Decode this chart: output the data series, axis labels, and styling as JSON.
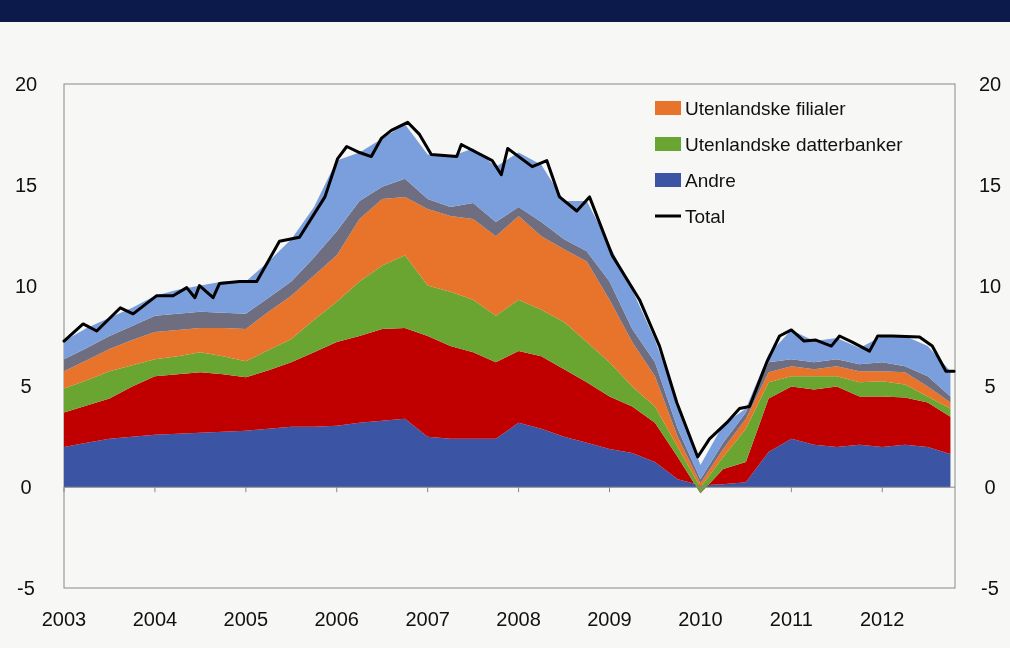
{
  "chart_data": {
    "type": "area",
    "stacked": true,
    "legend": "top right",
    "x": [
      2003,
      2003.25,
      2003.5,
      2003.75,
      2004,
      2004.25,
      2004.5,
      2004.75,
      2005,
      2005.25,
      2005.5,
      2005.75,
      2006,
      2006.25,
      2006.5,
      2006.75,
      2007,
      2007.25,
      2007.5,
      2007.75,
      2008,
      2008.25,
      2008.5,
      2008.75,
      2009,
      2009.25,
      2009.5,
      2009.75,
      2010,
      2010.25,
      2010.5,
      2010.75,
      2011,
      2011.25,
      2011.5,
      2011.75,
      2012,
      2012.25,
      2012.5,
      2012.75
    ],
    "xlim": [
      2003,
      2012.8
    ],
    "xticks": [
      2003,
      2004,
      2005,
      2006,
      2007,
      2008,
      2009,
      2010,
      2011,
      2012
    ],
    "ylim": [
      -5,
      20
    ],
    "yticks": [
      -5,
      0,
      5,
      10,
      15,
      20
    ],
    "y2lim": [
      -5,
      20
    ],
    "y2ticks": [
      -5,
      0,
      5,
      10,
      15,
      20
    ],
    "series": [
      {
        "name": "Andre",
        "color": "#3b54a4",
        "values": [
          2.0,
          2.2,
          2.4,
          2.5,
          2.6,
          2.65,
          2.7,
          2.75,
          2.8,
          2.9,
          3.0,
          3.0,
          3.05,
          3.2,
          3.3,
          3.4,
          2.5,
          2.4,
          2.4,
          2.4,
          3.2,
          2.9,
          2.5,
          2.2,
          1.9,
          1.7,
          1.25,
          0.4,
          0.1,
          0.15,
          0.25,
          1.75,
          2.4,
          2.1,
          2.0,
          2.1,
          2.0,
          2.1,
          2.0,
          1.65
        ]
      },
      {
        "color": "#c00000",
        "values": [
          1.7,
          1.85,
          2.0,
          2.5,
          2.9,
          2.95,
          3.0,
          2.85,
          2.65,
          2.9,
          3.2,
          3.7,
          4.15,
          4.3,
          4.55,
          4.5,
          5.0,
          4.6,
          4.3,
          3.8,
          3.55,
          3.6,
          3.35,
          3.0,
          2.6,
          2.3,
          1.95,
          1.1,
          -0.4,
          0.75,
          1.0,
          2.65,
          2.6,
          2.75,
          3.0,
          2.4,
          2.5,
          2.35,
          2.2,
          1.85
        ]
      },
      {
        "name": "Utenlandske datterbanker",
        "color": "#6aa532",
        "values": [
          1.2,
          1.25,
          1.35,
          1.05,
          0.85,
          0.9,
          1.0,
          0.9,
          0.8,
          1.0,
          1.15,
          1.6,
          2.0,
          2.7,
          3.15,
          3.6,
          2.5,
          2.7,
          2.6,
          2.3,
          2.55,
          2.3,
          2.35,
          2.0,
          1.7,
          1.0,
          0.8,
          0.5,
          0.3,
          0.6,
          1.65,
          0.8,
          0.5,
          0.65,
          0.5,
          0.7,
          0.75,
          0.65,
          0.3,
          0.4
        ]
      },
      {
        "name": "Utenlandske filialer",
        "color": "#e8732a",
        "values": [
          0.85,
          1.0,
          1.1,
          1.25,
          1.35,
          1.3,
          1.2,
          1.4,
          1.6,
          1.9,
          2.15,
          2.2,
          2.3,
          3.1,
          3.3,
          2.9,
          3.8,
          3.75,
          4.0,
          3.95,
          4.15,
          3.65,
          3.6,
          4.0,
          3.1,
          2.2,
          1.5,
          0.5,
          0.2,
          0.4,
          0.5,
          0.5,
          0.5,
          0.35,
          0.5,
          0.55,
          0.5,
          0.6,
          0.5,
          0.3
        ]
      },
      {
        "color": "#6e6e80",
        "values": [
          0.6,
          0.6,
          0.65,
          0.7,
          0.8,
          0.8,
          0.8,
          0.75,
          0.75,
          0.7,
          0.7,
          0.9,
          1.2,
          0.9,
          0.6,
          0.9,
          0.5,
          0.45,
          0.8,
          0.7,
          0.45,
          0.7,
          0.5,
          0.5,
          0.9,
          0.65,
          0.7,
          0.4,
          0.2,
          0.3,
          0.3,
          0.5,
          0.35,
          0.35,
          0.35,
          0.35,
          0.45,
          0.3,
          0.5,
          0.3
        ]
      },
      {
        "color": "#7b9fdc",
        "values": [
          0.9,
          1.0,
          0.9,
          0.9,
          1.0,
          1.2,
          1.3,
          1.55,
          1.6,
          1.8,
          2.1,
          2.5,
          3.5,
          2.4,
          2.4,
          2.7,
          2.2,
          2.5,
          2.7,
          2.75,
          2.7,
          2.85,
          1.9,
          2.5,
          1.8,
          1.95,
          1.1,
          1.3,
          0.7,
          0.9,
          0.2,
          0.4,
          1.45,
          1.05,
          1.05,
          0.8,
          1.3,
          1.5,
          1.5,
          1.25
        ]
      },
      {
        "name": "Total",
        "type": "line",
        "color": "#000000",
        "x": [
          2003,
          2003.21,
          2003.36,
          2003.62,
          2003.76,
          2004.02,
          2004.2,
          2004.35,
          2004.44,
          2004.49,
          2004.64,
          2004.71,
          2004.93,
          2005.12,
          2005.37,
          2005.59,
          2005.87,
          2006.01,
          2006.11,
          2006.25,
          2006.38,
          2006.49,
          2006.6,
          2006.78,
          2006.91,
          2007.04,
          2007.32,
          2007.37,
          2007.71,
          2007.81,
          2007.88,
          2008.15,
          2008.31,
          2008.45,
          2008.64,
          2008.78,
          2009.03,
          2009.33,
          2009.55,
          2009.74,
          2009.97,
          2010.1,
          2010.29,
          2010.43,
          2010.54,
          2010.73,
          2010.87,
          2011.0,
          2011.14,
          2011.27,
          2011.44,
          2011.53,
          2011.67,
          2011.86,
          2011.95,
          2012.11,
          2012.41,
          2012.55,
          2012.7,
          2012.79
        ],
        "values": [
          7.25,
          8.1,
          7.75,
          8.9,
          8.6,
          9.5,
          9.5,
          9.9,
          9.4,
          10.0,
          9.4,
          10.1,
          10.2,
          10.2,
          12.2,
          12.4,
          14.4,
          16.3,
          16.9,
          16.6,
          16.4,
          17.3,
          17.7,
          18.1,
          17.5,
          16.5,
          16.4,
          17.0,
          16.2,
          15.5,
          16.8,
          15.9,
          16.2,
          14.4,
          13.7,
          14.4,
          11.5,
          9.3,
          7.0,
          4.2,
          1.5,
          2.4,
          3.2,
          3.9,
          4.0,
          6.2,
          7.5,
          7.8,
          7.25,
          7.3,
          7.0,
          7.5,
          7.2,
          6.75,
          7.5,
          7.5,
          7.45,
          7.0,
          5.75,
          5.75
        ]
      }
    ]
  }
}
